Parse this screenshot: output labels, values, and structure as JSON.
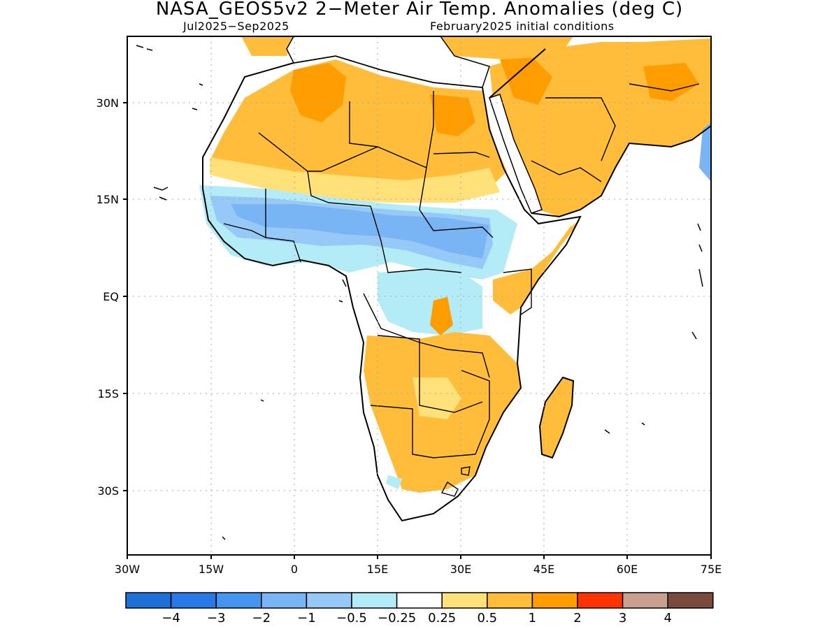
{
  "title": "NASA_GEOS5v2 2−Meter Air Temp. Anomalies (deg C)",
  "period": "Jul2025−Sep2025",
  "initial_conditions": "February2025 initial conditions",
  "lat_labels": [
    "30N",
    "15N",
    "EQ",
    "15S",
    "30S"
  ],
  "lon_labels": [
    "30W",
    "15W",
    "0",
    "15E",
    "30E",
    "45E",
    "60E",
    "75E"
  ],
  "colorbar": {
    "colors": [
      "#1f6fd6",
      "#2a78e8",
      "#4595f0",
      "#79b4f4",
      "#96c9f7",
      "#b3ecf7",
      "#ffffff",
      "#ffe079",
      "#ffbd3a",
      "#ff9d00",
      "#ff3300",
      "#c9a08f",
      "#7a4b3c"
    ],
    "labels": [
      "−4",
      "−3",
      "−2",
      "−1",
      "−0.5",
      "−0.25",
      "0.25",
      "0.5",
      "1",
      "2",
      "3",
      "4"
    ]
  }
}
